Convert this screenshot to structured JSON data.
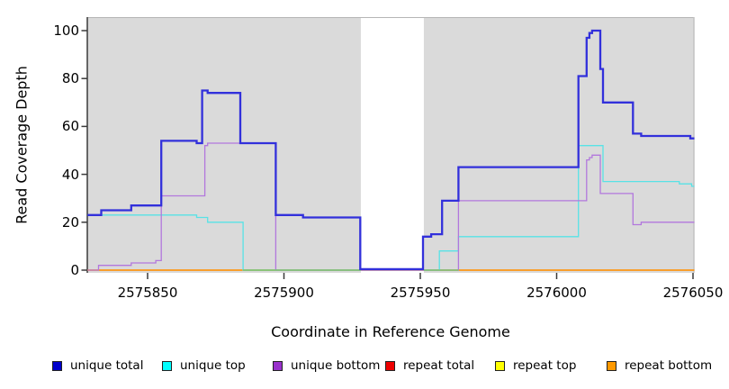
{
  "axes": {
    "x_label": "Coordinate in Reference Genome",
    "y_label": "Read Coverage Depth",
    "x_ticks": [
      {
        "bp": 2575850,
        "label": "2575850"
      },
      {
        "bp": 2575900,
        "label": "2575900"
      },
      {
        "bp": 2575950,
        "label": "2575950"
      },
      {
        "bp": 2576000,
        "label": "2576000"
      },
      {
        "bp": 2576050,
        "label": "2576050"
      }
    ],
    "y_ticks": [
      "0",
      "20",
      "40",
      "60",
      "80",
      "100"
    ],
    "axis_color": "#3a3a3a"
  },
  "legend": {
    "items": [
      {
        "label": "unique total",
        "color": "#0000CC"
      },
      {
        "label": "unique top",
        "color": "#00FFFF"
      },
      {
        "label": "unique bottom",
        "color": "#9932CC"
      },
      {
        "label": "repeat total",
        "color": "#EE0000"
      },
      {
        "label": "repeat top",
        "color": "#FFFF00"
      },
      {
        "label": "repeat bottom",
        "color": "#FF9900"
      }
    ]
  },
  "chart_data": {
    "type": "step-line",
    "title": "",
    "xlabel": "Coordinate in Reference Genome",
    "ylabel": "Read Coverage Depth",
    "x_range": [
      2575828,
      2576050.5
    ],
    "y_range": [
      0,
      105
    ],
    "grid": false,
    "plot_background": "#DADADA",
    "border_top_color": "#b5b5b5",
    "border_right_color": "#c2c2c2",
    "highlight_band": {
      "x0": 2575928.2,
      "x1": 2575951.3,
      "color": "#FFFFFF"
    },
    "series": [
      {
        "name": "repeat total",
        "color": "#DD0000",
        "width": 1.3,
        "points": [
          [
            2575828,
            0
          ],
          [
            2576050.5,
            0
          ]
        ]
      },
      {
        "name": "repeat top",
        "color": "#FFFF00",
        "width": 1.3,
        "points": [
          [
            2575828,
            0
          ],
          [
            2576050.5,
            0
          ]
        ]
      },
      {
        "name": "repeat bottom",
        "color": "#FF9614",
        "width": 1.6,
        "points": [
          [
            2575828,
            0
          ],
          [
            2576050.5,
            0
          ]
        ]
      },
      {
        "name": "unique top",
        "color": "#58E2E6",
        "width": 1.3,
        "points": [
          [
            2575828,
            23
          ],
          [
            2575868,
            22
          ],
          [
            2575872,
            20
          ],
          [
            2575885,
            0
          ],
          [
            2575957,
            8
          ],
          [
            2575964,
            14
          ],
          [
            2576008,
            52
          ],
          [
            2576017,
            37
          ],
          [
            2576045,
            36
          ],
          [
            2576049.5,
            35
          ],
          [
            2576050.5,
            35
          ]
        ]
      },
      {
        "name": "unique bottom",
        "color": "#B277DD",
        "width": 1.3,
        "points": [
          [
            2575828,
            0
          ],
          [
            2575832,
            2
          ],
          [
            2575844,
            3
          ],
          [
            2575853,
            4
          ],
          [
            2575855,
            31
          ],
          [
            2575871,
            52
          ],
          [
            2575872,
            53
          ],
          [
            2575897,
            0
          ],
          [
            2575964,
            29
          ],
          [
            2576011,
            46
          ],
          [
            2576012,
            47
          ],
          [
            2576013,
            48
          ],
          [
            2576016,
            32
          ],
          [
            2576028,
            19
          ],
          [
            2576031,
            20
          ],
          [
            2576050.5,
            20
          ]
        ]
      },
      {
        "name": "unique total",
        "color": "#3230DB",
        "width": 2.3,
        "points": [
          [
            2575828,
            23
          ],
          [
            2575833,
            25
          ],
          [
            2575844,
            27
          ],
          [
            2575855,
            54
          ],
          [
            2575868,
            53
          ],
          [
            2575870,
            75
          ],
          [
            2575872,
            74
          ],
          [
            2575884,
            53
          ],
          [
            2575897,
            23
          ],
          [
            2575907,
            22
          ],
          [
            2575928,
            0.4
          ],
          [
            2575951,
            14
          ],
          [
            2575954,
            15
          ],
          [
            2575958,
            29
          ],
          [
            2575964,
            43
          ],
          [
            2576008,
            81
          ],
          [
            2576011,
            97
          ],
          [
            2576012,
            99
          ],
          [
            2576013,
            100
          ],
          [
            2576016,
            84
          ],
          [
            2576017,
            70
          ],
          [
            2576028,
            57
          ],
          [
            2576031,
            56
          ],
          [
            2576049,
            55
          ],
          [
            2576050.5,
            55
          ]
        ]
      }
    ],
    "zero_overlays": [
      {
        "x0": 2575885,
        "x1": 2575928.2,
        "color": "#76C77E"
      },
      {
        "x0": 2575951.3,
        "x1": 2575964,
        "color": "#76C77E"
      }
    ]
  }
}
